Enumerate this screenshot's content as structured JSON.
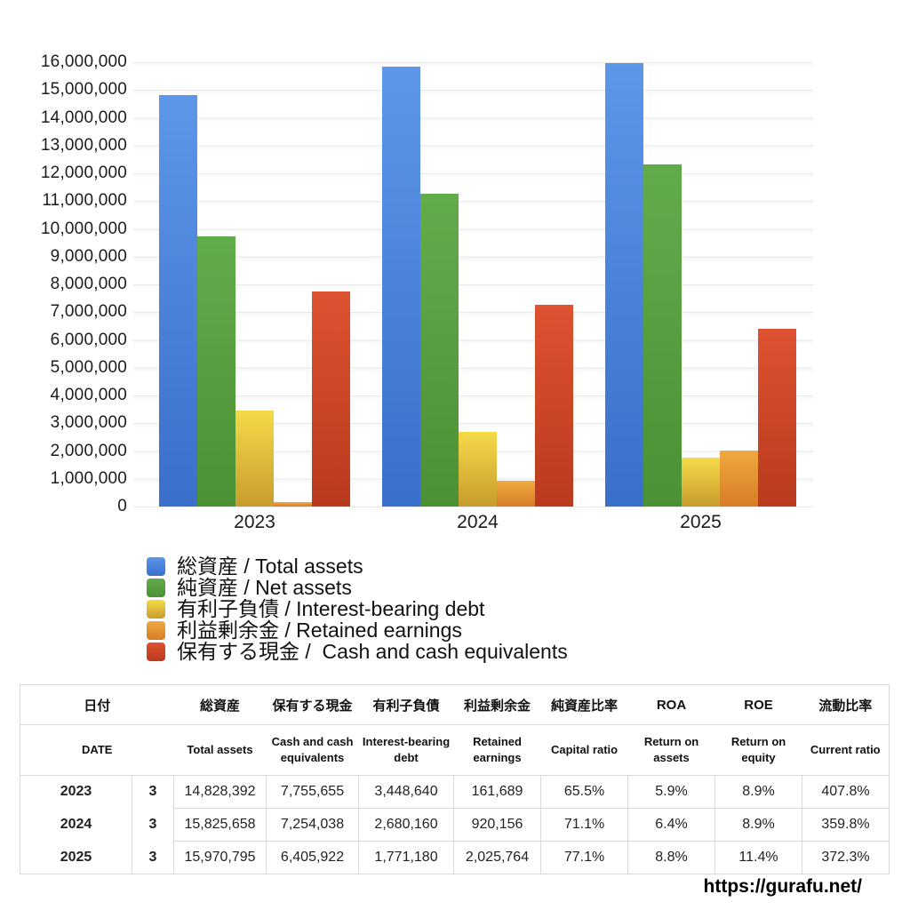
{
  "page": {
    "background": "#ffffff",
    "source_url": "https://gurafu.net/"
  },
  "chart_data": {
    "type": "bar",
    "title": "",
    "xlabel": "",
    "ylabel": "",
    "categories": [
      "2023",
      "2024",
      "2025"
    ],
    "series": [
      {
        "key": "total-assets",
        "label": "総資産 / Total assets",
        "color_top": "#5C97E8",
        "color_bottom": "#3A6FCC",
        "values": [
          14828392,
          15825658,
          15970795
        ]
      },
      {
        "key": "net-assets",
        "label": "純資産 / Net assets",
        "color_top": "#62AB4B",
        "color_bottom": "#4C9135",
        "values": [
          9712600,
          11252000,
          12313500
        ]
      },
      {
        "key": "interest-bearing-debt",
        "label": "有利子負債 / Interest-bearing debt",
        "color_top": "#F5DA48",
        "color_bottom": "#C89C2D",
        "values": [
          3448640,
          2680160,
          1771180
        ]
      },
      {
        "key": "retained-earnings",
        "label": "利益剰余金 / Retained earnings",
        "color_top": "#EFAA40",
        "color_bottom": "#D67C26",
        "values": [
          161689,
          920156,
          2025764
        ]
      },
      {
        "key": "cash-and-equivalents",
        "label": "保有する現金 /  Cash and cash equivalents",
        "color_top": "#DE5231",
        "color_bottom": "#BA3A1D",
        "values": [
          7755655,
          7254038,
          6405922
        ]
      }
    ],
    "ylim": [
      0,
      16000000
    ],
    "ytick_step": 1000000,
    "grid": true,
    "legend_position": "below-left"
  },
  "table": {
    "headers_ja": [
      "日付",
      "総資産",
      "保有する現金",
      "有利子負債",
      "利益剰余金",
      "純資産比率",
      "ROA",
      "ROE",
      "流動比率"
    ],
    "headers_en": [
      "DATE",
      "Total assets",
      "Cash and cash equivalents",
      "Interest-bearing debt",
      "Retained earnings",
      "Capital ratio",
      "Return on assets",
      "Return on equity",
      "Current ratio"
    ],
    "rows": [
      {
        "year": "2023",
        "month": "3",
        "values": [
          "14,828,392",
          "7,755,655",
          "3,448,640",
          "161,689",
          "65.5%",
          "5.9%",
          "8.9%",
          "407.8%"
        ]
      },
      {
        "year": "2024",
        "month": "3",
        "values": [
          "15,825,658",
          "7,254,038",
          "2,680,160",
          "920,156",
          "71.1%",
          "6.4%",
          "8.9%",
          "359.8%"
        ]
      },
      {
        "year": "2025",
        "month": "3",
        "values": [
          "15,970,795",
          "6,405,922",
          "1,771,180",
          "2,025,764",
          "77.1%",
          "8.8%",
          "11.4%",
          "372.3%"
        ]
      }
    ]
  }
}
